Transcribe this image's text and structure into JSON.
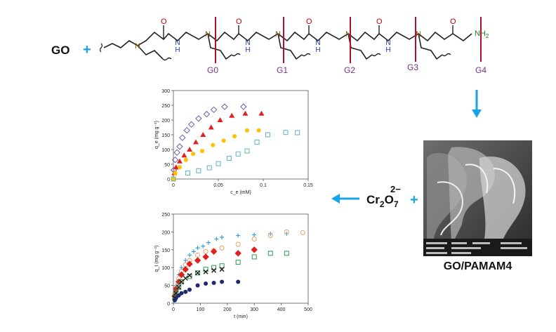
{
  "scheme": {
    "go_label": "GO",
    "plus": "+",
    "amine": "NH",
    "amine_sub": "2",
    "generations": [
      "G0",
      "G1",
      "G2",
      "G3",
      "G4"
    ],
    "n_atom": "N",
    "nh_label": "N\nH",
    "carbonyl": "O",
    "dichromate": "Cr",
    "dichromate_sub1": "2",
    "dichromate_o": "O",
    "dichromate_sub2": "7",
    "dichromate_charge": "2−",
    "product_label": "GO/PAMAM4",
    "colors": {
      "arrow": "#1aa3e8",
      "plus": "#1aa3e8",
      "divider": "#b0102a",
      "gen_label": "#7b2e8c",
      "n_atom": "#7a5a14",
      "nh": "#1f3a9a",
      "o_atom": "#c00000",
      "nh2": "#1b7a1b"
    }
  },
  "chart_data": [
    {
      "type": "scatter",
      "xlabel": "c_e (mM)",
      "ylabel": "q_e (mg g⁻¹)",
      "xlim": [
        0,
        0.15
      ],
      "ylim": [
        0,
        300
      ],
      "xticks": [
        "0",
        "0.05",
        "0.1",
        "0.15"
      ],
      "yticks": [
        "0",
        "50",
        "100",
        "150",
        "200",
        "250",
        "300"
      ],
      "series": [
        {
          "marker": "diamond-open",
          "color": "#6a5aa8",
          "x": [
            0.0005,
            0.002,
            0.004,
            0.007,
            0.01,
            0.015,
            0.02,
            0.028,
            0.037,
            0.045,
            0.057,
            0.078
          ],
          "y": [
            30,
            65,
            90,
            110,
            140,
            165,
            185,
            205,
            220,
            235,
            245,
            245
          ]
        },
        {
          "marker": "triangle",
          "color": "#e02020",
          "x": [
            0.001,
            0.003,
            0.007,
            0.012,
            0.018,
            0.025,
            0.033,
            0.042,
            0.052,
            0.065,
            0.08,
            0.098
          ],
          "y": [
            20,
            40,
            60,
            80,
            100,
            125,
            150,
            175,
            200,
            215,
            222,
            222
          ]
        },
        {
          "marker": "circle",
          "color": "#ffc000",
          "x": [
            0.0,
            0.002,
            0.007,
            0.014,
            0.022,
            0.032,
            0.044,
            0.056,
            0.068,
            0.082,
            0.095
          ],
          "y": [
            0,
            20,
            40,
            65,
            85,
            95,
            115,
            130,
            145,
            165,
            165
          ]
        },
        {
          "marker": "square-open",
          "color": "#5fb2c8",
          "x": [
            0.0,
            0.016,
            0.028,
            0.04,
            0.05,
            0.062,
            0.072,
            0.082,
            0.093,
            0.105,
            0.125,
            0.138
          ],
          "y": [
            0,
            20,
            28,
            38,
            52,
            70,
            85,
            95,
            125,
            150,
            158,
            157
          ]
        }
      ]
    },
    {
      "type": "scatter",
      "xlabel": "t (min)",
      "ylabel": "q_t (mg g⁻¹)",
      "xlim": [
        0,
        500
      ],
      "ylim": [
        0,
        250
      ],
      "xticks": [
        "0",
        "100",
        "200",
        "300",
        "400",
        "500"
      ],
      "yticks": [
        "0",
        "50",
        "100",
        "150",
        "200",
        "250"
      ],
      "series": [
        {
          "marker": "plus",
          "color": "#3aa0d8",
          "x": [
            5,
            10,
            20,
            30,
            45,
            60,
            75,
            90,
            110,
            130,
            160,
            180,
            240,
            300,
            360,
            420
          ],
          "y": [
            30,
            50,
            80,
            100,
            120,
            135,
            145,
            155,
            160,
            170,
            180,
            185,
            190,
            192,
            195,
            195
          ]
        },
        {
          "marker": "circle-open",
          "color": "#e8a060",
          "x": [
            5,
            10,
            20,
            30,
            45,
            60,
            90,
            120,
            150,
            180,
            240,
            300,
            360,
            420,
            480
          ],
          "y": [
            25,
            45,
            70,
            90,
            108,
            120,
            135,
            145,
            148,
            155,
            165,
            180,
            190,
            200,
            198
          ]
        },
        {
          "marker": "diamond",
          "color": "#e02020",
          "x": [
            5,
            10,
            20,
            30,
            45,
            60,
            90,
            120,
            150,
            240,
            300
          ],
          "y": [
            20,
            40,
            60,
            80,
            95,
            110,
            120,
            130,
            145,
            140,
            150
          ]
        },
        {
          "marker": "square-open",
          "color": "#2f9a4a",
          "x": [
            5,
            10,
            20,
            30,
            60,
            90,
            120,
            150,
            180,
            240,
            300,
            360,
            420
          ],
          "y": [
            15,
            30,
            45,
            60,
            75,
            85,
            95,
            100,
            105,
            115,
            130,
            140,
            140
          ]
        },
        {
          "marker": "cross",
          "color": "#1a1a1a",
          "x": [
            5,
            10,
            20,
            30,
            45,
            60,
            90,
            120,
            150,
            180
          ],
          "y": [
            15,
            28,
            45,
            60,
            70,
            78,
            85,
            88,
            92,
            95
          ]
        },
        {
          "marker": "circle",
          "color": "#1f2a6e",
          "x": [
            5,
            10,
            20,
            30,
            45,
            60,
            90,
            120,
            150,
            180,
            240
          ],
          "y": [
            8,
            15,
            22,
            28,
            32,
            38,
            50,
            55,
            57,
            60,
            60
          ]
        }
      ]
    }
  ]
}
